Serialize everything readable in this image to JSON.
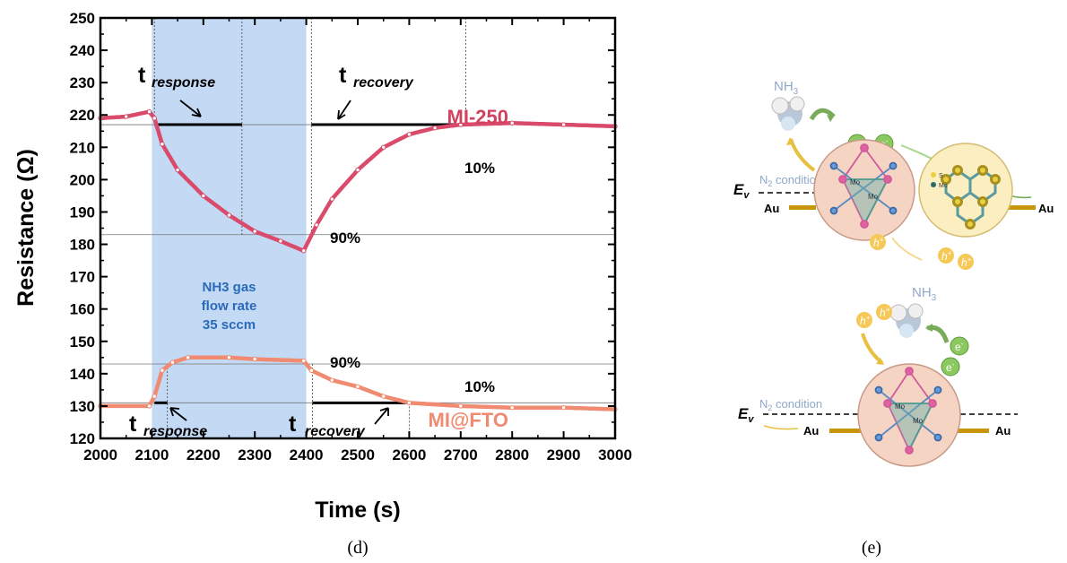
{
  "chart_data": {
    "type": "line",
    "xlabel": "Time (s)",
    "ylabel": "Resistance (Ω)",
    "xlim": [
      2000,
      3000
    ],
    "ylim": [
      120,
      250
    ],
    "x_ticks": [
      2000,
      2100,
      2200,
      2300,
      2400,
      2500,
      2600,
      2700,
      2800,
      2900,
      3000
    ],
    "y_ticks": [
      120,
      130,
      140,
      150,
      160,
      170,
      180,
      190,
      200,
      210,
      220,
      230,
      240,
      250
    ],
    "grid": false,
    "shaded_region": {
      "x": [
        2100,
        2400
      ],
      "label_lines": [
        "NH3 gas",
        "flow rate",
        "35 sccm"
      ]
    },
    "series": [
      {
        "name": "MI-250",
        "color": "#d94a6b",
        "points": [
          [
            2000,
            219
          ],
          [
            2050,
            219.5
          ],
          [
            2095,
            221
          ],
          [
            2105,
            219
          ],
          [
            2120,
            211
          ],
          [
            2150,
            203
          ],
          [
            2200,
            195
          ],
          [
            2250,
            189
          ],
          [
            2300,
            184
          ],
          [
            2350,
            181
          ],
          [
            2395,
            178
          ],
          [
            2420,
            186
          ],
          [
            2450,
            194
          ],
          [
            2500,
            203
          ],
          [
            2550,
            210
          ],
          [
            2600,
            214
          ],
          [
            2650,
            216
          ],
          [
            2700,
            217
          ],
          [
            2800,
            217.5
          ],
          [
            2900,
            217
          ],
          [
            3000,
            216.5
          ]
        ],
        "levels": {
          "ten_percent": 217,
          "ninety_percent": 183
        }
      },
      {
        "name": "MI@FTO",
        "color": "#f08a70",
        "points": [
          [
            2000,
            130
          ],
          [
            2095,
            130
          ],
          [
            2105,
            133
          ],
          [
            2120,
            141
          ],
          [
            2140,
            143.5
          ],
          [
            2170,
            145
          ],
          [
            2250,
            145
          ],
          [
            2300,
            144.5
          ],
          [
            2395,
            144
          ],
          [
            2410,
            141
          ],
          [
            2450,
            138
          ],
          [
            2500,
            136
          ],
          [
            2550,
            133
          ],
          [
            2600,
            131
          ],
          [
            2700,
            130
          ],
          [
            2800,
            129.5
          ],
          [
            2900,
            129.5
          ],
          [
            3000,
            129
          ]
        ],
        "levels": {
          "ten_percent": 131,
          "ninety_percent": 143
        }
      }
    ],
    "annotations": {
      "top_response_t": "t",
      "top_response_sub": "response",
      "top_recovery_t": "t",
      "top_recovery_sub": "recovery",
      "top_pct_10": "10%",
      "top_pct_90": "90%",
      "bottom_response_t": "t",
      "bottom_response_sub": "response",
      "bottom_recovery_t": "t",
      "bottom_recovery_sub": "recovery",
      "bottom_pct_90": "90%",
      "bottom_pct_10": "10%"
    }
  },
  "panel_labels": {
    "d": "(d)",
    "e": "(e)"
  },
  "schematic": {
    "gas": "NH",
    "gas_sub": "3",
    "condition": "N",
    "condition_sub": "2",
    "condition_rest": " condition",
    "electron": "e",
    "hole": "h",
    "ev": "E",
    "ev_sub": "v",
    "au": "Au",
    "mo": "Mo",
    "s": "S"
  }
}
